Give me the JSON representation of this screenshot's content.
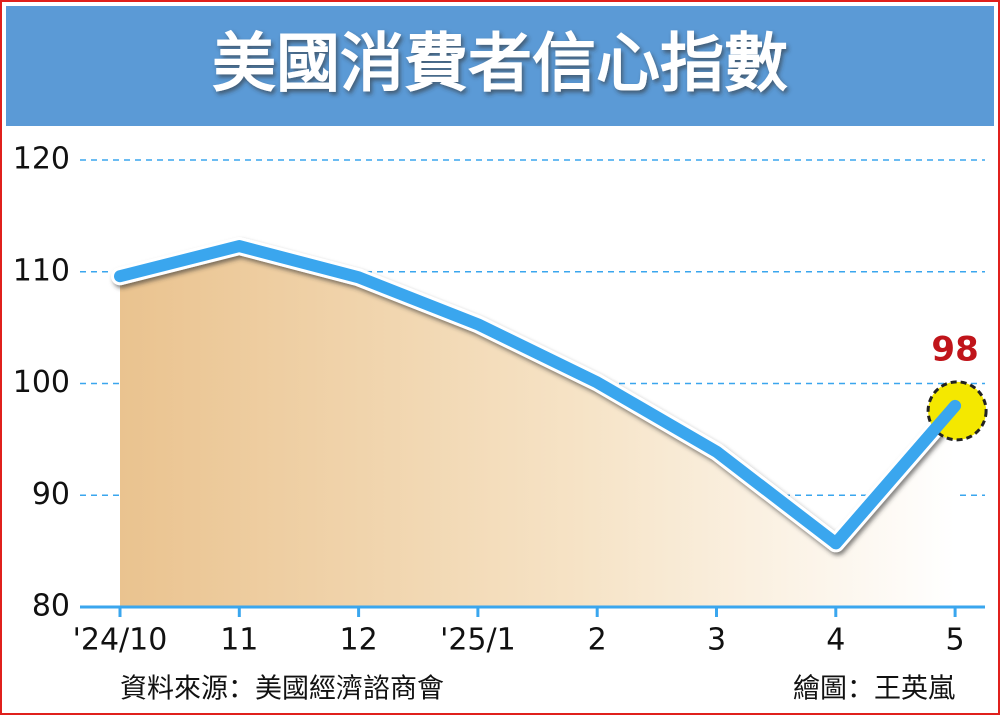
{
  "chart_data": {
    "type": "line",
    "title": "美國消費者信心指數",
    "categories": [
      "'24/10",
      "11",
      "12",
      "'25/1",
      "2",
      "3",
      "4",
      "5"
    ],
    "series": [
      {
        "name": "美國消費者信心指數",
        "color": "#3aa6ee",
        "values": [
          109.6,
          112.3,
          109.5,
          105.3,
          100.1,
          93.9,
          85.7,
          98
        ]
      }
    ],
    "ylim": [
      80,
      120
    ],
    "yticks": [
      80,
      90,
      100,
      110,
      120
    ],
    "grid": true,
    "source": "資料來源：美國經濟諮商會",
    "credit": "繪圖：王英嵐"
  }
}
